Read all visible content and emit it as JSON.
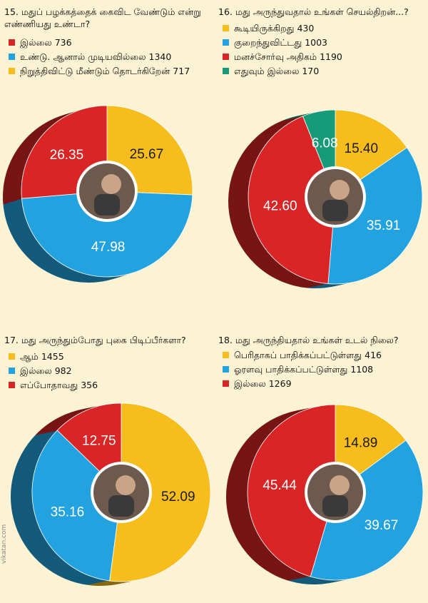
{
  "colors": {
    "yellow": "#f7bd1c",
    "blue": "#22a3e0",
    "red": "#d92525",
    "green": "#169a78",
    "background": "#fbf3d3"
  },
  "site": "vikatan.com",
  "chart_data": [
    {
      "type": "pie",
      "title": "15. மதுப் பழக்கத்தைக் கைவிட வேண்டும் என்று எண்ணியது உண்டா?",
      "legend": [
        {
          "label": "இல்லை",
          "count": "736",
          "color": "#d92525"
        },
        {
          "label": "உண்டு. ஆனால் முடியவில்லை",
          "count": "1340",
          "color": "#22a3e0"
        },
        {
          "label": "நிறுத்திவிட்டு மீண்டும் தொடர்கிறேன்",
          "count": "717",
          "color": "#f7bd1c"
        }
      ],
      "slices": [
        {
          "value": 25.67,
          "label": "25.67",
          "color": "#f7bd1c"
        },
        {
          "value": 47.98,
          "label": "47.98",
          "color": "#22a3e0"
        },
        {
          "value": 26.35,
          "label": "26.35",
          "color": "#d92525"
        }
      ]
    },
    {
      "type": "pie",
      "title": "16. மது அருந்துவதால் உங்கள் செயல்திறன்...?",
      "legend": [
        {
          "label": "கூடியிருக்கிறது",
          "count": "430",
          "color": "#f7bd1c"
        },
        {
          "label": "குறைந்துவிட்டது",
          "count": "1003",
          "color": "#22a3e0"
        },
        {
          "label": "மனச்சோர்வு அதிகம்",
          "count": "1190",
          "color": "#d92525"
        },
        {
          "label": "எதுவும் இல்லை",
          "count": "170",
          "color": "#169a78"
        }
      ],
      "slices": [
        {
          "value": 15.4,
          "label": "15.40",
          "color": "#f7bd1c"
        },
        {
          "value": 35.91,
          "label": "35.91",
          "color": "#22a3e0"
        },
        {
          "value": 42.6,
          "label": "42.60",
          "color": "#d92525"
        },
        {
          "value": 6.08,
          "label": "6.08",
          "color": "#169a78"
        }
      ]
    },
    {
      "type": "pie",
      "title": "17. மது அருந்தும்போது புகை பிடிப்பீர்களா?",
      "legend": [
        {
          "label": "ஆம்",
          "count": "1455",
          "color": "#f7bd1c"
        },
        {
          "label": "இல்லை",
          "count": "982",
          "color": "#22a3e0"
        },
        {
          "label": "எப்போதாவது",
          "count": "356",
          "color": "#d92525"
        }
      ],
      "slices": [
        {
          "value": 52.09,
          "label": "52.09",
          "color": "#f7bd1c"
        },
        {
          "value": 35.16,
          "label": "35.16",
          "color": "#22a3e0"
        },
        {
          "value": 12.75,
          "label": "12.75",
          "color": "#d92525"
        }
      ]
    },
    {
      "type": "pie",
      "title": "18. மது அருந்தியதால் உங்கள் உடல் நிலை?",
      "legend": [
        {
          "label": "பெரிதாகப் பாதிக்கப்பட்டுள்ளது",
          "count": "416",
          "color": "#f7bd1c"
        },
        {
          "label": "ஓரளவு பாதிக்கப்பட்டுள்ளது",
          "count": "1108",
          "color": "#22a3e0"
        },
        {
          "label": "இல்லை",
          "count": "1269",
          "color": "#d92525"
        }
      ],
      "slices": [
        {
          "value": 14.89,
          "label": "14.89",
          "color": "#f7bd1c"
        },
        {
          "value": 39.67,
          "label": "39.67",
          "color": "#22a3e0"
        },
        {
          "value": 45.44,
          "label": "45.44",
          "color": "#d92525"
        }
      ]
    }
  ]
}
